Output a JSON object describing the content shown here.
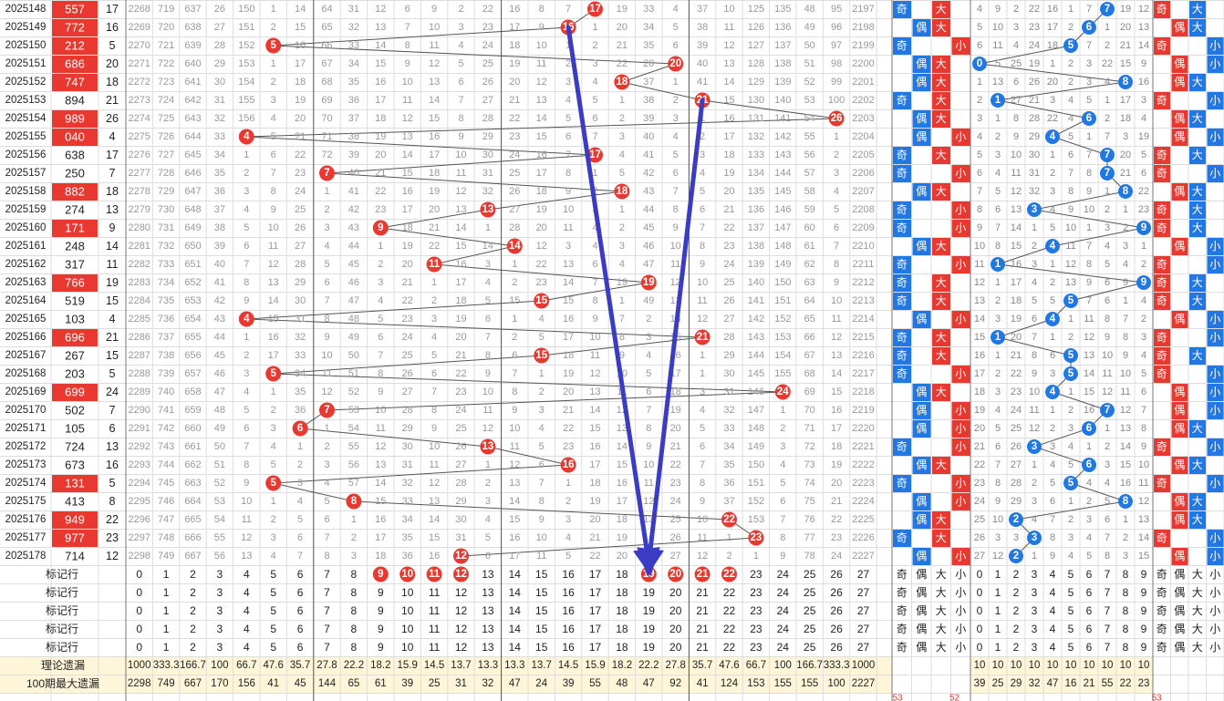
{
  "chart_data": {
    "type": "table",
    "title": "",
    "colors": {
      "red": "#e8382f",
      "blue": "#2177e3",
      "arrow": "#3a3dc4",
      "grid": "#dddddd",
      "summary_bg": "#fff6d9"
    },
    "sum_columns": [
      "0",
      "1",
      "2",
      "3",
      "4",
      "5",
      "6",
      "7",
      "8",
      "9",
      "10",
      "11",
      "12",
      "13",
      "14",
      "15",
      "16",
      "17",
      "18",
      "19",
      "20",
      "21",
      "22",
      "23",
      "24",
      "25",
      "26",
      "27"
    ],
    "parity_labels": [
      "奇",
      "偶"
    ],
    "size_labels": [
      "大",
      "小"
    ],
    "digit_columns": [
      "0",
      "1",
      "2",
      "3",
      "4",
      "5",
      "6",
      "7",
      "8",
      "9"
    ],
    "rows": [
      {
        "issue": "2025148",
        "number": "557",
        "sum": 17,
        "miss": "2268 719 637 26 150 1 14 64 31 12 6 9 2 22 16 8 7 17 19 33 4 37 10 125 135 48 95 2197",
        "parity": "奇",
        "size": "大",
        "digits": "4 9 2 22 16 1 7 7 19 12",
        "dparity": "奇",
        "dsize": "大",
        "hl": 1
      },
      {
        "issue": "2025149",
        "number": "772",
        "sum": 16,
        "miss": "2269 720 638 27 151 2 15 65 32 13 7 10 3 23 17 9 16 1 20 34 5 38 11 126 136 49 96 2198",
        "parity": "偶",
        "size": "大",
        "digits": "5 10 3 23 17 2 6 1 20 13",
        "dparity": "偶",
        "dsize": "大",
        "hl": 1
      },
      {
        "issue": "2025150",
        "number": "212",
        "sum": 5,
        "miss": "2270 721 639 28 152 5 16 66 33 14 8 11 4 24 18 10 1 2 21 35 6 39 12 127 137 50 97 2199",
        "parity": "奇",
        "size": "小",
        "digits": "6 11 4 24 18 5 7 2 21 14",
        "dparity": "奇",
        "dsize": "小",
        "hl": 1
      },
      {
        "issue": "2025151",
        "number": "686",
        "sum": 20,
        "miss": "2271 722 640 29 153 1 17 67 34 15 9 12 5 25 19 11 2 3 22 20 7 40 13 128 138 51 98 2200",
        "parity": "偶",
        "size": "大",
        "digits": "0 5 25 19 1 2 3 22 15 9",
        "dparity": "偶",
        "dsize": "小",
        "hl": 1
      },
      {
        "issue": "2025152",
        "number": "747",
        "sum": 18,
        "miss": "2272 723 641 30 154 2 18 68 35 16 10 13 6 26 20 12 3 4 18 37 1 41 14 129 139 52 99 2201",
        "parity": "偶",
        "size": "大",
        "digits": "1 13 6 26 20 2 3 4 8 16",
        "dparity": "偶",
        "dsize": "大",
        "hl": 1
      },
      {
        "issue": "2025153",
        "number": "894",
        "sum": 21,
        "miss": "2273 724 642 31 155 3 19 69 36 17 11 14 7 27 21 13 4 5 1 38 2 21 15 130 140 53 100 2202",
        "parity": "奇",
        "size": "大",
        "digits": "2 1 27 21 3 4 5 1 17 3",
        "dparity": "奇",
        "dsize": "小",
        "hl": 0
      },
      {
        "issue": "2025154",
        "number": "989",
        "sum": 26,
        "miss": "2274 725 643 32 156 4 20 70 37 18 12 15 8 28 22 14 5 6 2 39 3 1 16 131 141 54 26 2203",
        "parity": "偶",
        "size": "大",
        "digits": "3 1 8 28 22 4 6 2 18 4",
        "dparity": "偶",
        "dsize": "大",
        "hl": 1
      },
      {
        "issue": "2025155",
        "number": "040",
        "sum": 4,
        "miss": "2275 726 644 33 4 5 21 71 38 19 13 16 9 29 23 15 6 7 3 40 4 2 17 132 142 55 1 2204",
        "parity": "偶",
        "size": "小",
        "digits": "4 2 9 29 4 5 1 7 3 19",
        "dparity": "偶",
        "dsize": "小",
        "hl": 1
      },
      {
        "issue": "2025156",
        "number": "638",
        "sum": 17,
        "miss": "2276 727 645 34 1 6 22 72 39 20 14 17 10 30 24 16 7 17 4 41 5 3 18 133 143 56 2 2205",
        "parity": "奇",
        "size": "大",
        "digits": "5 3 10 30 1 6 7 4 20 5",
        "dparity": "奇",
        "dsize": "大",
        "hl": 0
      },
      {
        "issue": "2025157",
        "number": "250",
        "sum": 7,
        "miss": "2277 728 646 35 2 7 23 7 40 21 15 18 11 31 25 17 8 1 5 42 6 4 19 134 144 57 3 2206",
        "parity": "奇",
        "size": "小",
        "digits": "6 4 11 31 2 7 8 7 21 6",
        "dparity": "奇",
        "dsize": "小",
        "hl": 0
      },
      {
        "issue": "2025158",
        "number": "882",
        "sum": 18,
        "miss": "2278 729 647 36 3 8 24 1 41 22 16 19 12 32 26 18 9 2 18 43 7 5 20 135 145 58 4 2207",
        "parity": "偶",
        "size": "大",
        "digits": "7 5 12 32 3 8 9 1 8 22",
        "dparity": "偶",
        "dsize": "大",
        "hl": 1
      },
      {
        "issue": "2025159",
        "number": "274",
        "sum": 13,
        "miss": "2279 730 648 37 4 9 25 2 42 23 17 20 13 13 27 19 10 3 1 44 8 6 21 136 146 59 5 2208",
        "parity": "奇",
        "size": "小",
        "digits": "8 6 13 3 4 9 10 2 1 23",
        "dparity": "奇",
        "dsize": "大",
        "hl": 0
      },
      {
        "issue": "2025160",
        "number": "171",
        "sum": 9,
        "miss": "2280 731 649 38 5 10 26 3 43 9 18 21 14 1 28 20 11 4 2 45 9 7 22 137 147 60 6 2209",
        "parity": "奇",
        "size": "小",
        "digits": "9 7 14 1 5 10 1 3 2 9",
        "dparity": "奇",
        "dsize": "大",
        "hl": 1
      },
      {
        "issue": "2025161",
        "number": "248",
        "sum": 14,
        "miss": "2281 732 650 39 6 11 27 4 44 1 19 22 15 14 21 12 3 4 3 46 10 8 23 138 148 61 7 2210",
        "parity": "偶",
        "size": "大",
        "digits": "10 8 15 2 4 11 7 4 3 1",
        "dparity": "偶",
        "dsize": "小",
        "hl": 0
      },
      {
        "issue": "2025162",
        "number": "317",
        "sum": 11,
        "miss": "2282 733 651 40 7 12 28 5 45 2 20 11 16 3 1 22 13 6 4 47 11 9 24 139 149 62 8 2211",
        "parity": "奇",
        "size": "小",
        "digits": "11 1 16 3 1 12 8 5 4 2",
        "dparity": "奇",
        "dsize": "小",
        "hl": 0
      },
      {
        "issue": "2025163",
        "number": "766",
        "sum": 19,
        "miss": "2283 734 652 41 8 13 29 6 46 3 21 1 17 4 2 23 14 7 19 48 12 10 25 140 150 63 9 2212",
        "parity": "奇",
        "size": "大",
        "digits": "12 1 17 4 2 13 9 6 9 3",
        "dparity": "奇",
        "dsize": "大",
        "hl": 1
      },
      {
        "issue": "2025164",
        "number": "519",
        "sum": 15,
        "miss": "2284 735 653 42 9 14 30 7 47 4 22 2 18 5 15 24 15 8 1 49 13 11 26 141 151 64 10 2213",
        "parity": "奇",
        "size": "大",
        "digits": "13 2 18 5 5 10 7 6 1 4",
        "dparity": "奇",
        "dsize": "大",
        "hl": 0
      },
      {
        "issue": "2025165",
        "number": "103",
        "sum": 4,
        "miss": "2285 736 654 43 4 15 31 8 48 5 23 3 19 6 1 4 16 9 7 2 14 12 27 142 152 65 11 2214",
        "parity": "偶",
        "size": "小",
        "digits": "14 3 19 6 4 1 11 8 7 2",
        "dparity": "偶",
        "dsize": "小",
        "hl": 0
      },
      {
        "issue": "2025166",
        "number": "696",
        "sum": 21,
        "miss": "2286 737 655 44 1 16 32 9 49 6 24 4 20 7 2 5 17 10 8 3 15 21 28 143 153 66 12 2215",
        "parity": "奇",
        "size": "大",
        "digits": "15 1 20 7 1 2 12 9 8 3",
        "dparity": "奇",
        "dsize": "小",
        "hl": 1
      },
      {
        "issue": "2025167",
        "number": "267",
        "sum": 15,
        "miss": "2287 738 656 45 2 17 33 10 50 7 25 5 21 8 6 15 18 11 9 4 16 1 29 144 154 67 13 2216",
        "parity": "奇",
        "size": "大",
        "digits": "16 1 21 8 6 5 13 10 9 4",
        "dparity": "奇",
        "dsize": "大",
        "hl": 0
      },
      {
        "issue": "2025168",
        "number": "203",
        "sum": 5,
        "miss": "2288 739 657 46 3 5 34 11 51 8 26 6 22 9 7 1 19 12 10 5 17 1 30 145 155 68 14 2217",
        "parity": "奇",
        "size": "小",
        "digits": "17 2 22 9 3 5 14 11 10 5",
        "dparity": "奇",
        "dsize": "小",
        "hl": 0
      },
      {
        "issue": "2025169",
        "number": "699",
        "sum": 24,
        "miss": "2289 740 658 47 4 1 35 12 52 9 27 7 23 10 8 2 20 13 11 6 18 3 31 146 24 69 15 2218",
        "parity": "偶",
        "size": "大",
        "digits": "18 3 23 10 4 1 15 12 11 6",
        "dparity": "偶",
        "dsize": "小",
        "hl": 1
      },
      {
        "issue": "2025170",
        "number": "502",
        "sum": 7,
        "miss": "2290 741 659 48 5 2 36 7 53 10 28 8 24 11 9 3 21 14 12 7 19 4 32 147 1 70 16 2219",
        "parity": "偶",
        "size": "小",
        "digits": "19 4 24 11 1 2 16 7 12 7",
        "dparity": "偶",
        "dsize": "小",
        "hl": 0
      },
      {
        "issue": "2025171",
        "number": "105",
        "sum": 6,
        "miss": "2291 742 660 49 6 3 6 1 54 11 29 9 25 12 10 4 22 15 13 8 20 5 33 148 2 71 17 2220",
        "parity": "偶",
        "size": "小",
        "digits": "20 5 25 12 2 3 6 1 13 8",
        "dparity": "偶",
        "dsize": "大",
        "hl": 0
      },
      {
        "issue": "2025172",
        "number": "724",
        "sum": 13,
        "miss": "2292 743 661 50 7 4 1 2 55 12 30 10 26 13 11 5 23 16 14 9 21 6 34 149 3 72 18 2221",
        "parity": "奇",
        "size": "小",
        "digits": "21 6 26 3 3 4 1 2 14 9",
        "dparity": "奇",
        "dsize": "小",
        "hl": 0
      },
      {
        "issue": "2025173",
        "number": "673",
        "sum": 16,
        "miss": "2293 744 662 51 8 5 2 3 56 13 31 11 27 1 12 6 16 17 15 10 22 7 35 150 4 73 19 2222",
        "parity": "偶",
        "size": "大",
        "digits": "22 7 27 1 4 5 6 3 15 10",
        "dparity": "偶",
        "dsize": "大",
        "hl": 0
      },
      {
        "issue": "2025174",
        "number": "131",
        "sum": 5,
        "miss": "2294 745 663 52 9 5 3 4 57 14 32 12 28 2 13 7 1 18 16 11 23 8 36 151 5 74 20 2223",
        "parity": "奇",
        "size": "小",
        "digits": "23 8 28 2 5 5 4 4 16 11",
        "dparity": "奇",
        "dsize": "小",
        "hl": 1
      },
      {
        "issue": "2025175",
        "number": "413",
        "sum": 8,
        "miss": "2295 746 664 53 10 1 4 5 8 15 33 13 29 3 14 8 2 19 17 12 24 9 37 152 6 75 21 2224",
        "parity": "偶",
        "size": "小",
        "digits": "24 9 29 3 6 1 2 5 8 12",
        "dparity": "偶",
        "dsize": "大",
        "hl": 0
      },
      {
        "issue": "2025176",
        "number": "949",
        "sum": 22,
        "miss": "2296 747 665 54 11 2 5 6 1 16 34 14 30 4 15 9 3 20 18 13 25 10 22 153 7 76 22 2225",
        "parity": "偶",
        "size": "大",
        "digits": "25 10 2 4 7 2 3 6 1 13",
        "dparity": "偶",
        "dsize": "大",
        "hl": 1
      },
      {
        "issue": "2025177",
        "number": "977",
        "sum": 23,
        "miss": "2297 748 666 55 12 3 6 7 2 17 35 15 31 5 16 10 4 21 19 14 26 11 1 23 8 77 23 2226",
        "parity": "奇",
        "size": "大",
        "digits": "26 3 3 5 8 3 4 7 2 14",
        "dparity": "奇",
        "dsize": "小",
        "hl": 1
      },
      {
        "issue": "2025178",
        "number": "714",
        "sum": 12,
        "miss": "2298 749 667 56 13 4 7 8 3 18 36 16 12 6 17 11 5 22 20 15 27 12 2 1 9 78 24 2227",
        "parity": "偶",
        "size": "小",
        "digits": "27 12 2 1 9 4 5 8 3 15",
        "dparity": "偶",
        "dsize": "小",
        "hl": 0
      }
    ],
    "marker_label": "标记行",
    "marker_row_count": 5,
    "marker_highlight_red": [
      9,
      10,
      11,
      12,
      19,
      20,
      21,
      22
    ],
    "marker_parity_size": [
      "奇",
      "偶",
      "大",
      "小"
    ],
    "theory_label": "理论遗漏",
    "theory_values": [
      "1000",
      "333.3",
      "166.7",
      "100",
      "66.7",
      "47.6",
      "35.7",
      "27.8",
      "22.2",
      "18.2",
      "15.9",
      "14.5",
      "13.7",
      "13.3",
      "13.3",
      "13.7",
      "14.5",
      "15.9",
      "18.2",
      "22.2",
      "27.8",
      "35.7",
      "47.6",
      "66.7",
      "100",
      "166.7",
      "333.3",
      "1000"
    ],
    "theory_digits": [
      "10",
      "10",
      "10",
      "10",
      "10",
      "10",
      "10",
      "10",
      "10",
      "10"
    ],
    "maxmiss_label": "100期最大遗漏",
    "maxmiss_values": [
      "2298",
      "749",
      "667",
      "170",
      "156",
      "41",
      "45",
      "144",
      "65",
      "61",
      "39",
      "25",
      "31",
      "32",
      "47",
      "24",
      "39",
      "55",
      "48",
      "47",
      "92",
      "41",
      "124",
      "153",
      "155",
      "155",
      "100",
      "2227"
    ],
    "maxmiss_digits": [
      "39",
      "25",
      "29",
      "32",
      "47",
      "16",
      "21",
      "55",
      "22",
      "23"
    ],
    "footer_marks": [
      "53",
      "52",
      "53"
    ],
    "trend_arrows": [
      {
        "from_issue": "2025149",
        "from_sum": 16,
        "to_issue": "marker",
        "to_sum": 19
      },
      {
        "from_issue": "2025153",
        "from_sum": 21,
        "to_issue": "marker",
        "to_sum": 19
      }
    ]
  }
}
